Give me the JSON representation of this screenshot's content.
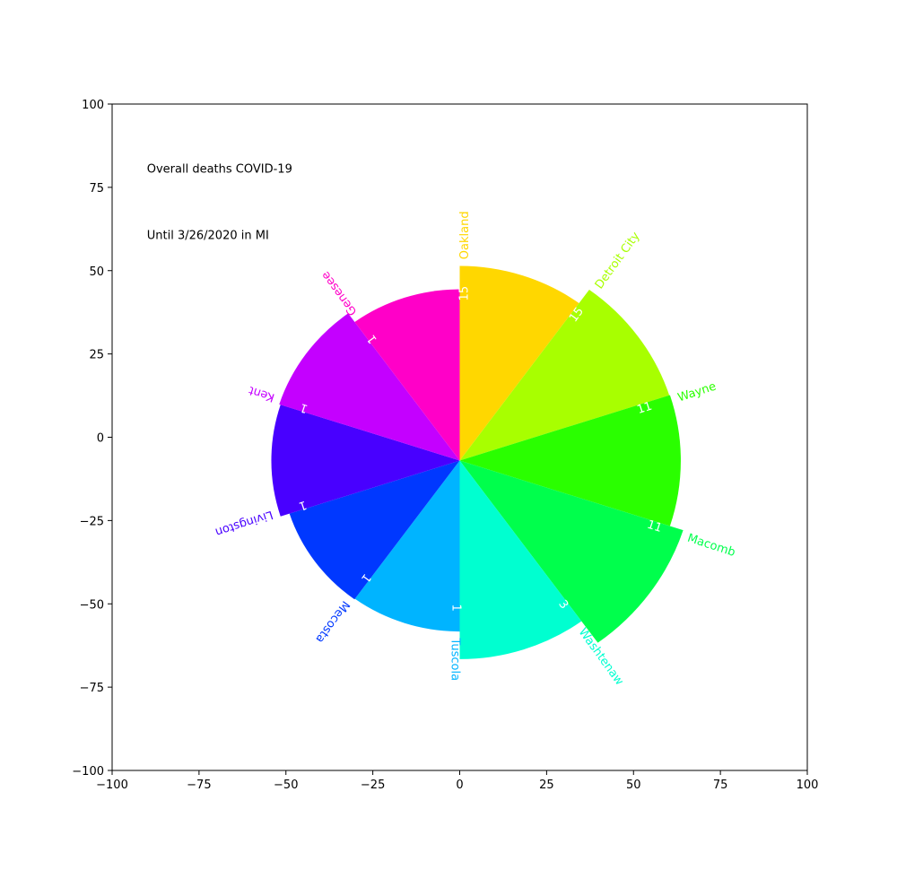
{
  "chart_data": {
    "type": "bar",
    "subtype": "radial-bar (polar bar drawn on cartesian axes)",
    "annotations": {
      "line1": "Overall deaths COVID-19",
      "line2": "Until 3/26/2020 in MI"
    },
    "categories": [
      "Oakland",
      "Detroit City",
      "Wayne",
      "Macomb",
      "Washtenaw",
      "Tuscola",
      "Mecosta",
      "Livingston",
      "Kent",
      "Genesee"
    ],
    "values": [
      15,
      15,
      11,
      11,
      3,
      1,
      1,
      1,
      1,
      1
    ],
    "colors": [
      "#ffd700",
      "#a8ff00",
      "#2aff00",
      "#00ff4c",
      "#00ffd0",
      "#00b4ff",
      "#0038ff",
      "#4800ff",
      "#c400ff",
      "#ff00c8"
    ],
    "bar_radius": [
      58.4,
      63.4,
      63.6,
      67.6,
      59.6,
      51.3,
      51.5,
      54.2,
      54.6,
      51.4
    ],
    "center": [
      0,
      -7
    ],
    "start_angle_deg_clockwise_from_north": 0,
    "xlim": [
      -100,
      100
    ],
    "ylim": [
      -100,
      100
    ],
    "xticks": [
      -100,
      -75,
      -50,
      -25,
      0,
      25,
      50,
      75,
      100
    ],
    "yticks": [
      -100,
      -75,
      -50,
      -25,
      0,
      25,
      50,
      75,
      100
    ],
    "xtick_labels": [
      "−100",
      "−75",
      "−50",
      "−25",
      "0",
      "25",
      "50",
      "75",
      "100"
    ],
    "ytick_labels": [
      "−100",
      "−75",
      "−50",
      "−25",
      "0",
      "25",
      "50",
      "75",
      "100"
    ],
    "grid": false,
    "legend": "none"
  }
}
